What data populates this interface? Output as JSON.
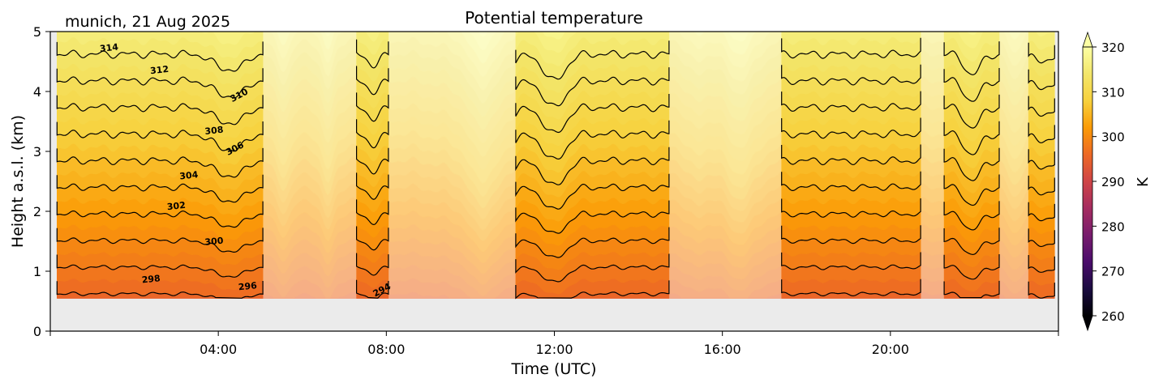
{
  "chart_data": {
    "type": "heatmap",
    "title": "Potential temperature",
    "subtitle": "munich, 21 Aug 2025",
    "xlabel": "Time (UTC)",
    "ylabel": "Height a.s.l. (km)",
    "xlim_hours": [
      0,
      24
    ],
    "ylim": [
      0,
      5
    ],
    "x_ticks": [
      {
        "hour": 4,
        "label": "04:00"
      },
      {
        "hour": 8,
        "label": "08:00"
      },
      {
        "hour": 12,
        "label": "12:00"
      },
      {
        "hour": 16,
        "label": "16:00"
      },
      {
        "hour": 20,
        "label": "20:00"
      }
    ],
    "y_ticks": [
      {
        "value": 0,
        "label": "0"
      },
      {
        "value": 1,
        "label": "1"
      },
      {
        "value": 2,
        "label": "2"
      },
      {
        "value": 3,
        "label": "3"
      },
      {
        "value": 4,
        "label": "4"
      },
      {
        "value": 5,
        "label": "5"
      }
    ],
    "data_bottom_km": 0.55,
    "colorbar": {
      "label": "K",
      "range": [
        260,
        320
      ],
      "extend": "both",
      "colormap": "inferno",
      "ticks": [
        {
          "value": 260,
          "label": "260"
        },
        {
          "value": 270,
          "label": "270"
        },
        {
          "value": 280,
          "label": "280"
        },
        {
          "value": 290,
          "label": "290"
        },
        {
          "value": 300,
          "label": "300"
        },
        {
          "value": 310,
          "label": "310"
        },
        {
          "value": 320,
          "label": "320"
        }
      ]
    },
    "contour_levels": [
      294,
      296,
      298,
      300,
      302,
      304,
      306,
      308,
      310,
      312,
      314
    ],
    "contour_labels": [
      {
        "value": 314,
        "label": "314",
        "hour": 1.4,
        "km": 4.72
      },
      {
        "value": 312,
        "label": "312",
        "hour": 2.6,
        "km": 4.35
      },
      {
        "value": 310,
        "label": "310",
        "hour": 4.5,
        "km": 3.93
      },
      {
        "value": 308,
        "label": "308",
        "hour": 3.9,
        "km": 3.34
      },
      {
        "value": 306,
        "label": "306",
        "hour": 4.4,
        "km": 3.04
      },
      {
        "value": 304,
        "label": "304",
        "hour": 3.3,
        "km": 2.59
      },
      {
        "value": 302,
        "label": "302",
        "hour": 3.0,
        "km": 2.08
      },
      {
        "value": 300,
        "label": "300",
        "hour": 3.9,
        "km": 1.49
      },
      {
        "value": 298,
        "label": "298",
        "hour": 2.4,
        "km": 0.86
      },
      {
        "value": 296,
        "label": "296",
        "hour": 4.7,
        "km": 0.74
      },
      {
        "value": 294,
        "label": "294",
        "hour": 7.9,
        "km": 0.68
      }
    ],
    "valid_segments_hours": [
      [
        0.16,
        5.06
      ],
      [
        7.29,
        8.05
      ],
      [
        11.08,
        14.73
      ],
      [
        17.41,
        20.72
      ],
      [
        21.28,
        22.59
      ],
      [
        23.29,
        23.91
      ]
    ],
    "masked_segments_hours": [
      [
        5.06,
        7.29
      ],
      [
        8.05,
        11.08
      ],
      [
        14.73,
        17.41
      ],
      [
        20.72,
        21.28
      ],
      [
        22.59,
        23.29
      ]
    ],
    "colors": {
      "background_mask": "#ebebeb",
      "contour_line": "#000000"
    }
  }
}
